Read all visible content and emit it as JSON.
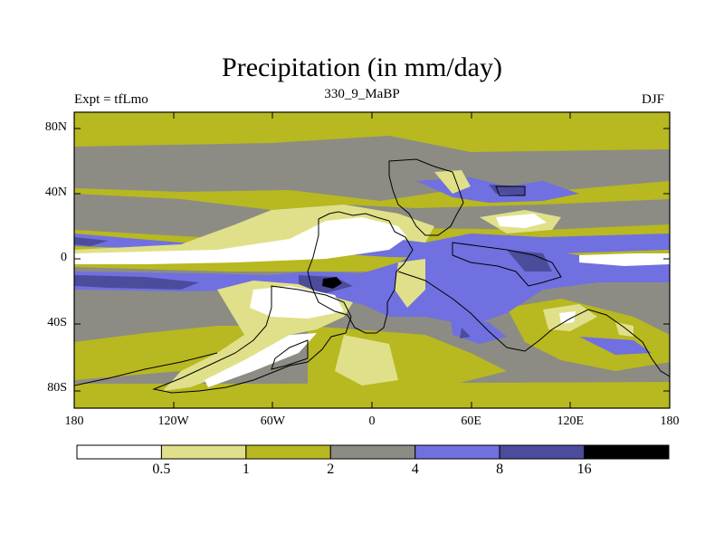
{
  "title": "Precipitation (in mm/day)",
  "experiment_label": "Expt = tfLmo",
  "run_label": "330_9_MaBP",
  "season_label": "DJF",
  "y_ticks": [
    {
      "label": "80N",
      "lat": 80
    },
    {
      "label": "40N",
      "lat": 40
    },
    {
      "label": "0",
      "lat": 0
    },
    {
      "label": "40S",
      "lat": -40
    },
    {
      "label": "80S",
      "lat": -80
    }
  ],
  "x_ticks": [
    {
      "label": "180",
      "lon": -180
    },
    {
      "label": "120W",
      "lon": -120
    },
    {
      "label": "60W",
      "lon": -60
    },
    {
      "label": "0",
      "lon": 0
    },
    {
      "label": "60E",
      "lon": 60
    },
    {
      "label": "120E",
      "lon": 120
    },
    {
      "label": "180",
      "lon": 180
    }
  ],
  "colorbar": {
    "colors": [
      "#ffffff",
      "#e0e08a",
      "#b8b820",
      "#8c8c84",
      "#7070e0",
      "#4c4c9c",
      "#000000"
    ],
    "levels": [
      "0.5",
      "1",
      "2",
      "4",
      "8",
      "16"
    ]
  },
  "legend_colors": {
    "white": "#ffffff",
    "pale_yellow": "#e0e08a",
    "olive": "#b8b820",
    "gray": "#8c8c84",
    "blue": "#7070e0",
    "dark_blue": "#4c4c9c",
    "black": "#000000"
  }
}
